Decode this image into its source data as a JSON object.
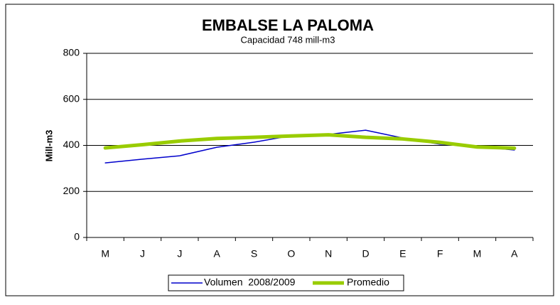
{
  "chart_data": {
    "type": "line",
    "title": "EMBALSE LA PALOMA",
    "subtitle": "Capacidad 748 mill-m3",
    "y_label": "Mill-m3",
    "categories": [
      "M",
      "J",
      "J",
      "A",
      "S",
      "O",
      "N",
      "D",
      "E",
      "F",
      "M",
      "A"
    ],
    "series": [
      {
        "name": "Volumen  2008/2009",
        "color": "#0000cc",
        "width": 1.5,
        "values": [
          324,
          340,
          355,
          392,
          414,
          442,
          448,
          466,
          432,
          405,
          395,
          380
        ]
      },
      {
        "name": "Promedio",
        "color": "#99cc00",
        "width": 5,
        "values": [
          389,
          403,
          419,
          430,
          435,
          441,
          446,
          435,
          428,
          413,
          393,
          388
        ]
      }
    ],
    "ylim": [
      0,
      800
    ],
    "yticks": [
      0,
      200,
      400,
      600,
      800
    ],
    "grid": true
  }
}
